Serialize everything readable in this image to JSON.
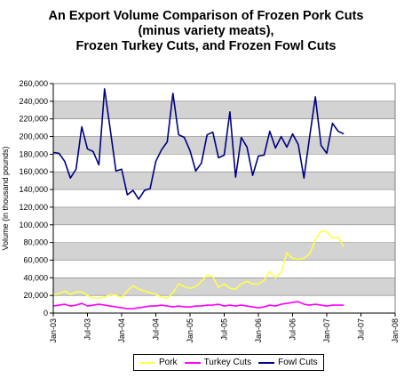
{
  "chart_data": {
    "type": "line",
    "title_lines": [
      "An Export Volume Comparison of Frozen Pork Cuts",
      "(minus variety meats),",
      "Frozen Turkey Cuts, and Frozen Fowl Cuts"
    ],
    "xlabel": "",
    "ylabel": "Volume (in thousand pounds)",
    "ylim": [
      0,
      260000
    ],
    "yticks": [
      "0",
      "20,000",
      "40,000",
      "60,000",
      "80,000",
      "100,000",
      "120,000",
      "140,000",
      "160,000",
      "180,000",
      "200,000",
      "220,000",
      "240,000",
      "260,000"
    ],
    "xticks": [
      "Jan-03",
      "Jul-03",
      "Jan-04",
      "Jul-04",
      "Jan-05",
      "Jul-05",
      "Jan-06",
      "Jul-06",
      "Jan-07",
      "Jul-07",
      "Jan-08"
    ],
    "x_start": "Jan-03",
    "x_end": "Jan-08",
    "background_bands": [
      "#ffffff",
      "#d3d3d3"
    ],
    "grid": true,
    "legend_position": "bottom",
    "series": [
      {
        "name": "Pork",
        "color": "#ffff4d",
        "values": [
          21000,
          22000,
          25000,
          21000,
          24000,
          24000,
          20000,
          17000,
          17000,
          18000,
          21000,
          20000,
          18000,
          25000,
          31000,
          27000,
          25000,
          23000,
          21000,
          18000,
          17000,
          23000,
          33000,
          30000,
          28000,
          30000,
          36000,
          43000,
          41000,
          29000,
          33000,
          28000,
          27000,
          33000,
          36000,
          33000,
          33000,
          37000,
          47000,
          40000,
          46000,
          68000,
          62000,
          61000,
          62000,
          67000,
          83000,
          93000,
          92000,
          85000,
          86000,
          75000
        ]
      },
      {
        "name": "Turkey Cuts",
        "color": "#ff00ff",
        "values": [
          8000,
          9000,
          10000,
          8000,
          9000,
          11000,
          8000,
          9000,
          10000,
          9000,
          8000,
          7000,
          6000,
          5000,
          5000,
          6000,
          7000,
          8000,
          8000,
          9000,
          8000,
          7000,
          8000,
          7000,
          7000,
          8000,
          8000,
          9000,
          9000,
          10000,
          8000,
          9000,
          8000,
          9000,
          8000,
          7000,
          6000,
          7000,
          9000,
          8000,
          10000,
          11000,
          12000,
          13000,
          10000,
          9000,
          10000,
          9000,
          8000,
          9000,
          9000,
          9000
        ]
      },
      {
        "name": "Fowl Cuts",
        "color": "#000080",
        "values": [
          182000,
          181000,
          172000,
          153000,
          163000,
          211000,
          186000,
          183000,
          168000,
          254000,
          208000,
          161000,
          163000,
          134000,
          139000,
          129000,
          139000,
          141000,
          172000,
          185000,
          194000,
          249000,
          202000,
          199000,
          184000,
          161000,
          170000,
          202000,
          205000,
          176000,
          179000,
          228000,
          154000,
          199000,
          188000,
          156000,
          178000,
          179000,
          206000,
          187000,
          200000,
          188000,
          203000,
          191000,
          153000,
          200000,
          245000,
          190000,
          181000,
          215000,
          206000,
          203000
        ]
      }
    ]
  }
}
